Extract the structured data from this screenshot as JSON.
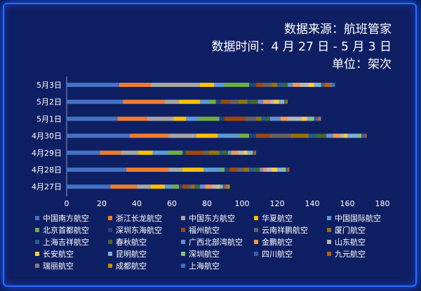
{
  "header": {
    "source": "数据来源：航班管家",
    "time": "数据时间：4 月 27 日 - 5 月 3 日",
    "unit": "单位：架次"
  },
  "chart_data": {
    "type": "bar",
    "orientation": "horizontal",
    "stacked": true,
    "categories": [
      "5月3日",
      "5月2日",
      "5月1日",
      "4月30日",
      "4月29日",
      "4月28日",
      "4月27日"
    ],
    "xlim": [
      0,
      180
    ],
    "xticks": [
      0,
      20,
      40,
      60,
      80,
      100,
      120,
      140,
      160,
      180
    ],
    "legend_position": "bottom",
    "series": [
      {
        "name": "中国南方航空",
        "color": "#4472c4",
        "values": [
          30,
          32,
          29,
          36,
          19,
          34,
          25
        ]
      },
      {
        "name": "浙江长龙航空",
        "color": "#ed7d31",
        "values": [
          18,
          24,
          17,
          22,
          12,
          24,
          15
        ]
      },
      {
        "name": "中国东方航空",
        "color": "#a5a5a5",
        "values": [
          28,
          8,
          15,
          16,
          10,
          8,
          8
        ]
      },
      {
        "name": "华夏航空",
        "color": "#ffc000",
        "values": [
          8,
          12,
          7,
          12,
          8,
          12,
          8
        ]
      },
      {
        "name": "中国国际航空",
        "color": "#5b9bd5",
        "values": [
          6,
          5,
          7,
          12,
          9,
          10,
          4
        ]
      },
      {
        "name": "北京首都航空",
        "color": "#70ad47",
        "values": [
          14,
          4,
          12,
          6,
          8,
          2,
          4
        ]
      },
      {
        "name": "深圳东海航空",
        "color": "#264478",
        "values": [
          4,
          3,
          3,
          4,
          2,
          3,
          2
        ]
      },
      {
        "name": "福州航空",
        "color": "#9e480e",
        "values": [
          4,
          5,
          12,
          8,
          10,
          4,
          3
        ]
      },
      {
        "name": "云南祥鹏航空",
        "color": "#636363",
        "values": [
          5,
          5,
          6,
          12,
          3,
          4,
          2
        ]
      },
      {
        "name": "厦门航空",
        "color": "#997300",
        "values": [
          3,
          5,
          3,
          10,
          6,
          3,
          2
        ]
      },
      {
        "name": "上海吉祥航空",
        "color": "#255e91",
        "values": [
          4,
          2,
          3,
          4,
          2,
          3,
          1
        ]
      },
      {
        "name": "春秋航空",
        "color": "#43682b",
        "values": [
          2,
          4,
          2,
          6,
          3,
          3,
          2
        ]
      },
      {
        "name": "广西北部湾航空",
        "color": "#698ed0",
        "values": [
          3,
          3,
          6,
          4,
          2,
          2,
          3
        ]
      },
      {
        "name": "金鹏航空",
        "color": "#f1975a",
        "values": [
          4,
          4,
          4,
          4,
          4,
          2,
          4
        ]
      },
      {
        "name": "山东航空",
        "color": "#b7b7b7",
        "values": [
          5,
          2,
          8,
          2,
          3,
          3,
          3
        ]
      },
      {
        "name": "长安航空",
        "color": "#ffcd33",
        "values": [
          3,
          3,
          3,
          2,
          2,
          3,
          1
        ]
      },
      {
        "name": "昆明航空",
        "color": "#7cafdd",
        "values": [
          3,
          2,
          2,
          6,
          2,
          3,
          1
        ]
      },
      {
        "name": "深圳航空",
        "color": "#8cc168",
        "values": [
          1,
          1,
          2,
          2,
          1,
          2,
          1
        ]
      },
      {
        "name": "四川航空",
        "color": "#3a5ea8",
        "values": [
          2,
          1,
          2,
          2,
          1,
          1,
          1
        ]
      },
      {
        "name": "九元航空",
        "color": "#c55a11",
        "values": [
          3,
          1,
          1,
          1,
          1,
          1,
          1
        ]
      },
      {
        "name": "瑞丽航空",
        "color": "#7f7f7f",
        "values": [
          1,
          0,
          1,
          0,
          0,
          0,
          1
        ]
      },
      {
        "name": "成都航空",
        "color": "#bf9000",
        "values": [
          0,
          0,
          0,
          0,
          0,
          0,
          1
        ]
      },
      {
        "name": "上海航空",
        "color": "#2e75b6",
        "values": [
          2,
          0,
          0,
          0,
          0,
          0,
          0
        ]
      }
    ]
  }
}
